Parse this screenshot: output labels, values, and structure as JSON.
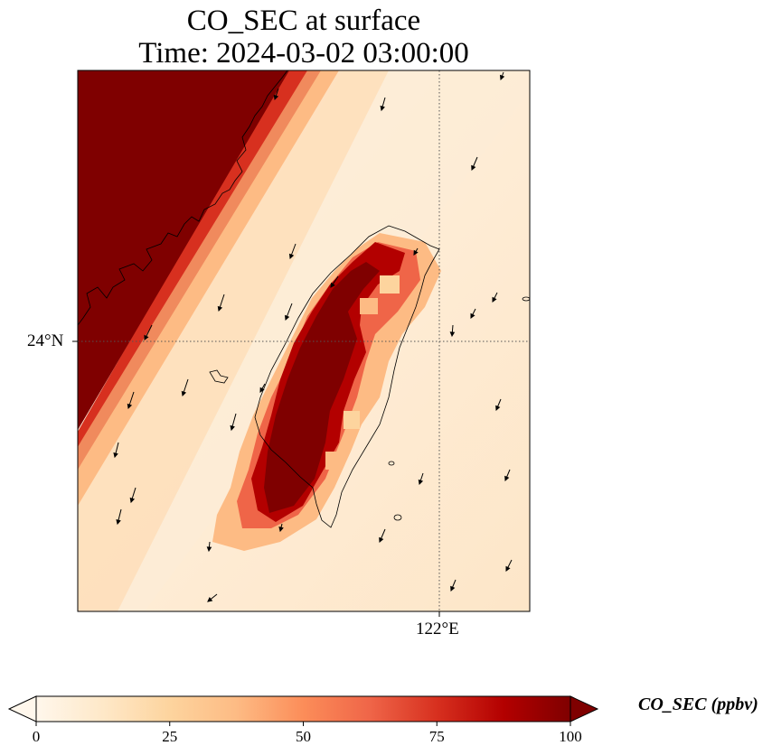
{
  "title": {
    "line1": "CO_SEC at surface",
    "line2": "Time: 2024-03-02 03:00:00"
  },
  "axes": {
    "lat_tick": "24°N",
    "lon_tick": "122°E"
  },
  "colorbar": {
    "label": "CO_SEC (ppbv)",
    "ticks": [
      "0",
      "25",
      "50",
      "75",
      "100"
    ],
    "tick_values": [
      0,
      25,
      50,
      75,
      100
    ],
    "range": [
      0,
      100
    ],
    "extend": "both",
    "colormap": [
      "#fff7ec",
      "#fee8c8",
      "#fdd49e",
      "#fdbb84",
      "#fc8d59",
      "#ef6548",
      "#d7301f",
      "#b30000",
      "#7f0000"
    ]
  },
  "colors": {
    "saturated": "#7f0000",
    "background_field": "#fde8cc",
    "coastline": "#000000",
    "gridline": "#555555"
  },
  "map": {
    "projection": "regional lat-lon",
    "gridlines": "dotted",
    "wind_vectors": "black arrows, mostly pointing south-southwest"
  }
}
